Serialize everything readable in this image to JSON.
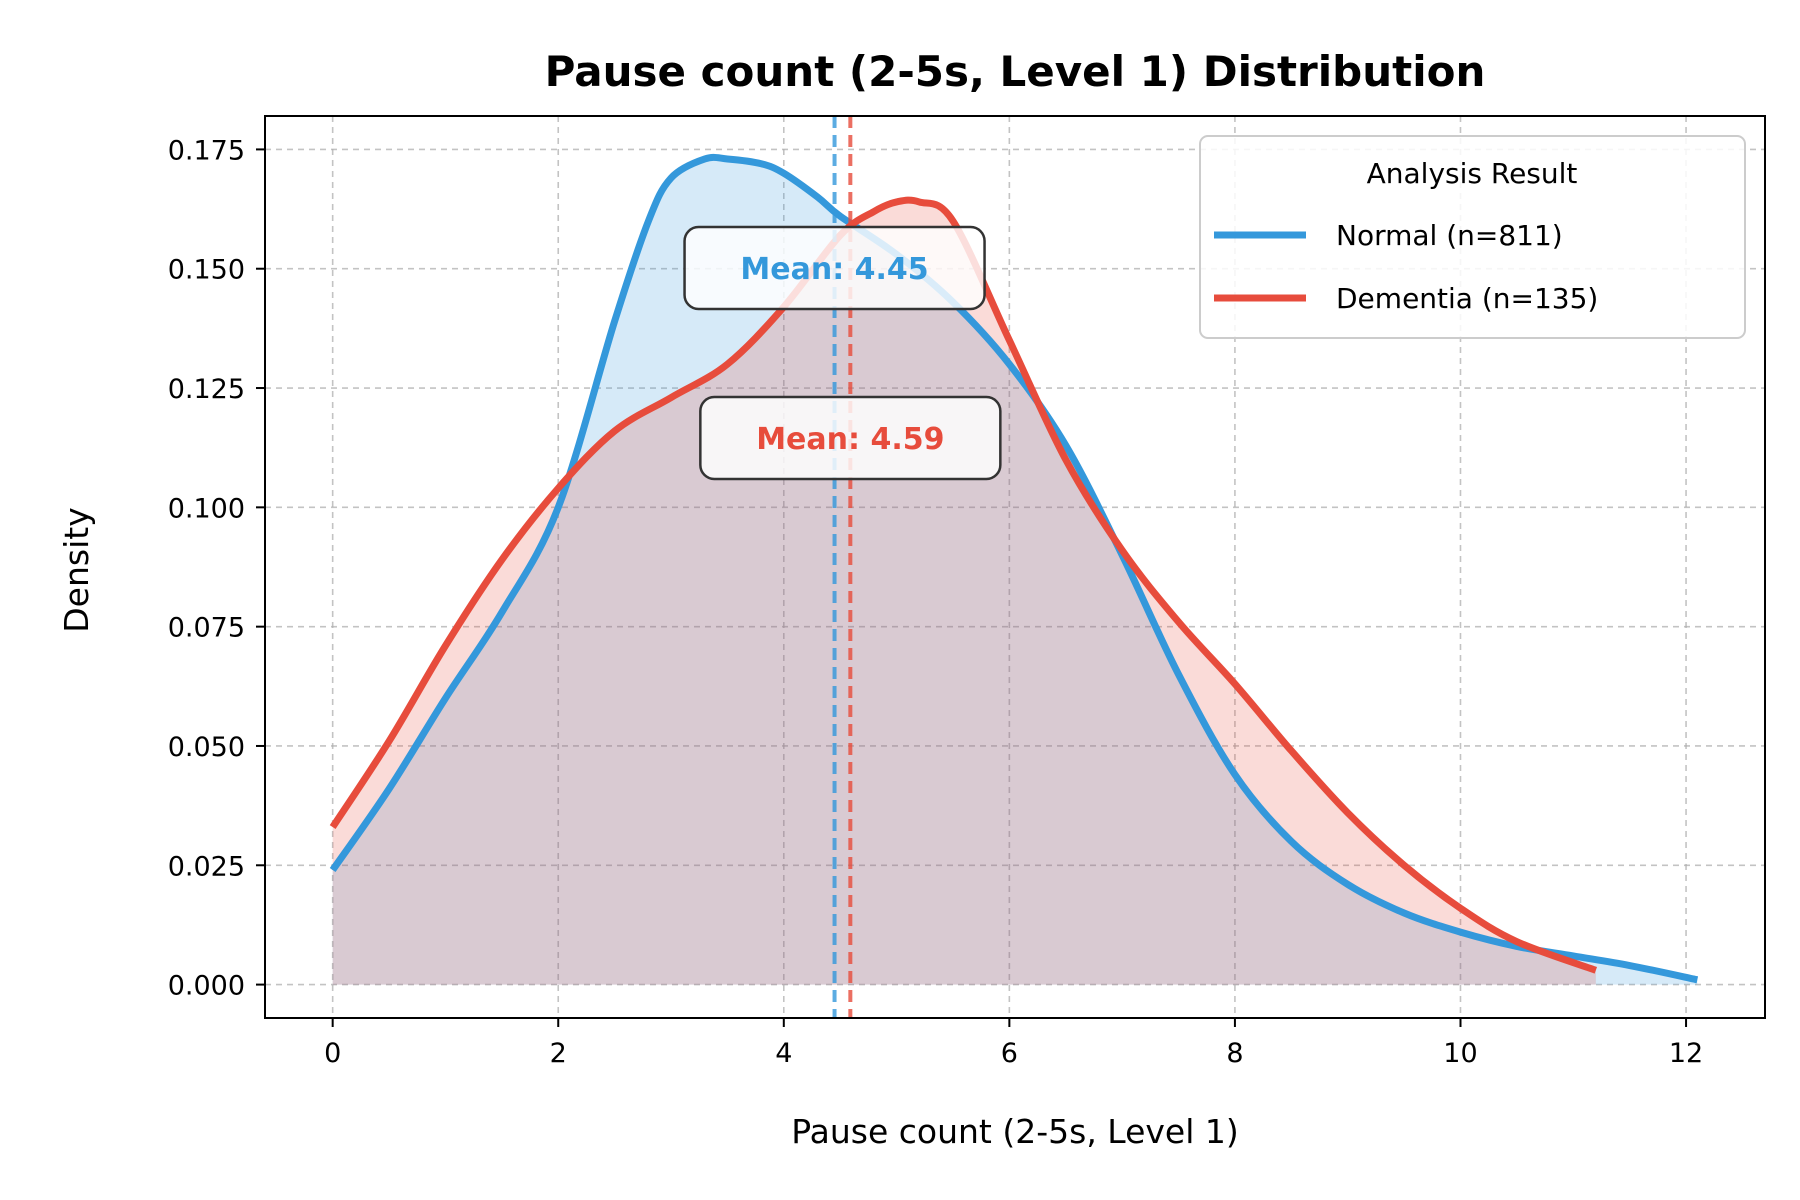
{
  "colors": {
    "normal": "#3498db",
    "dementia": "#e74c3c"
  },
  "chart_data": {
    "type": "area",
    "title": "Pause count (2-5s, Level 1) Distribution",
    "xlabel": "Pause count (2-5s, Level 1)",
    "ylabel": "Density",
    "xlim": [
      -0.6,
      12.7
    ],
    "ylim": [
      -0.007,
      0.182
    ],
    "xticks": [
      0,
      2,
      4,
      6,
      8,
      10,
      12
    ],
    "yticks": [
      0.0,
      0.025,
      0.05,
      0.075,
      0.1,
      0.125,
      0.15,
      0.175
    ],
    "ytick_labels": [
      "0.000",
      "0.025",
      "0.050",
      "0.075",
      "0.100",
      "0.125",
      "0.150",
      "0.175"
    ],
    "grid": true,
    "legend": {
      "title": "Analysis Result",
      "placement": "top-right"
    },
    "series": [
      {
        "name": "Normal (n=811)",
        "color": "#3498db",
        "mean": 4.45,
        "mean_label": "Mean: 4.45",
        "x": [
          0,
          0.5,
          1.0,
          1.5,
          2.0,
          2.5,
          2.8,
          3.0,
          3.3,
          3.5,
          3.8,
          4.0,
          4.3,
          4.5,
          5.0,
          5.5,
          6.0,
          6.5,
          7.0,
          7.5,
          8.0,
          8.5,
          9.0,
          9.5,
          10.0,
          10.5,
          11.0,
          11.5,
          12.1
        ],
        "y": [
          0.024,
          0.041,
          0.06,
          0.078,
          0.1,
          0.139,
          0.16,
          0.169,
          0.173,
          0.173,
          0.172,
          0.17,
          0.165,
          0.161,
          0.153,
          0.143,
          0.13,
          0.113,
          0.09,
          0.065,
          0.044,
          0.03,
          0.021,
          0.015,
          0.011,
          0.008,
          0.006,
          0.004,
          0.001
        ]
      },
      {
        "name": "Dementia (n=135)",
        "color": "#e74c3c",
        "mean": 4.59,
        "mean_label": "Mean: 4.59",
        "x": [
          0,
          0.5,
          1.0,
          1.5,
          2.0,
          2.5,
          3.0,
          3.5,
          4.0,
          4.5,
          4.8,
          5.0,
          5.2,
          5.5,
          6.0,
          6.5,
          7.0,
          7.5,
          8.0,
          8.5,
          9.0,
          9.5,
          10.0,
          10.5,
          11.2
        ],
        "y": [
          0.033,
          0.051,
          0.071,
          0.089,
          0.104,
          0.116,
          0.123,
          0.13,
          0.142,
          0.157,
          0.162,
          0.164,
          0.164,
          0.16,
          0.135,
          0.11,
          0.091,
          0.076,
          0.063,
          0.049,
          0.036,
          0.025,
          0.016,
          0.009,
          0.003
        ]
      }
    ]
  }
}
